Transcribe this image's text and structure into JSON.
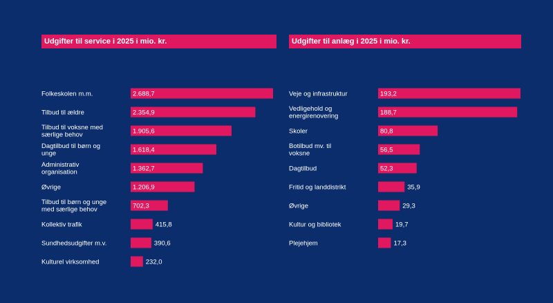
{
  "colors": {
    "background": "#0b2d6b",
    "accent": "#e0185f",
    "text": "#ffffff"
  },
  "chart_data": [
    {
      "type": "bar",
      "orientation": "horizontal",
      "title": "Udgifter til service i 2025 i mio. kr.",
      "categories": [
        "Folkeskolen m.m.",
        "Tilbud til ældre",
        "Tilbud til voksne med særlige behov",
        "Dagtilbud til børn og unge",
        "Administrativ organisation",
        "Øvrige",
        "Tilbud til børn og unge med særlige behov",
        "Kollektiv trafik",
        "Sundhedsudgifter m.v.",
        "Kulturel virksomhed"
      ],
      "values": [
        2688.7,
        2354.9,
        1905.6,
        1618.4,
        1362.7,
        1206.9,
        702.3,
        415.8,
        390.6,
        232.0
      ],
      "value_labels": [
        "2.688,7",
        "2.354,9",
        "1.905,6",
        "1.618,4",
        "1.362,7",
        "1.206,9",
        "702,3",
        "415,8",
        "390,6",
        "232,0"
      ],
      "grid": false,
      "legend": "none"
    },
    {
      "type": "bar",
      "orientation": "horizontal",
      "title": "Udgifter til anlæg i 2025 i mio. kr.",
      "categories": [
        "Veje og infrastruktur",
        "Vedligehold og energirenovering",
        "Skoler",
        "Botilbud mv. til voksne",
        "Dagtilbud",
        "Fritid og landdistrikt",
        "Øvrige",
        "Kultur og bibliotek",
        "Plejehjem"
      ],
      "values": [
        193.2,
        188.7,
        80.8,
        56.5,
        52.3,
        35.9,
        29.3,
        19.7,
        17.3
      ],
      "value_labels": [
        "193,2",
        "188,7",
        "80,8",
        "56,5",
        "52,3",
        "35,9",
        "29,3",
        "19,7",
        "17,3"
      ],
      "grid": false,
      "legend": "none"
    }
  ]
}
